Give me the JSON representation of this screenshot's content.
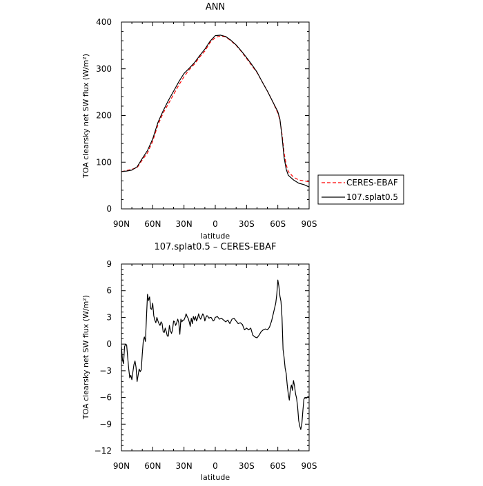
{
  "chart_data": [
    {
      "type": "line",
      "title": "ANN",
      "xlabel": "latitude",
      "ylabel": "TOA clearsky net SW flux (W/m²)",
      "xlim": [
        90,
        -90
      ],
      "ylim": [
        0,
        400
      ],
      "x_ticks": [
        90,
        60,
        30,
        0,
        -30,
        -60,
        -90
      ],
      "x_tick_labels": [
        "90N",
        "60N",
        "30N",
        "0",
        "30S",
        "60S",
        "90S"
      ],
      "y_ticks": [
        0,
        100,
        200,
        300,
        400
      ],
      "y_tick_labels": [
        "0",
        "100",
        "200",
        "300",
        "400"
      ],
      "legend": {
        "placement": "right-outside-bottom"
      },
      "series": [
        {
          "name": "CERES-EBAF",
          "color": "#ff0000",
          "dash": "dashed",
          "points": [
            [
              90,
              80
            ],
            [
              85,
              82
            ],
            [
              80,
              85
            ],
            [
              75,
              88
            ],
            [
              70,
              105
            ],
            [
              65,
              120
            ],
            [
              60,
              145
            ],
            [
              55,
              180
            ],
            [
              50,
              205
            ],
            [
              45,
              225
            ],
            [
              40,
              245
            ],
            [
              35,
              265
            ],
            [
              30,
              283
            ],
            [
              25,
              298
            ],
            [
              20,
              310
            ],
            [
              15,
              325
            ],
            [
              10,
              338
            ],
            [
              5,
              356
            ],
            [
              0,
              367
            ],
            [
              -5,
              370
            ],
            [
              -10,
              368
            ],
            [
              -15,
              360
            ],
            [
              -20,
              350
            ],
            [
              -25,
              337
            ],
            [
              -30,
              322
            ],
            [
              -35,
              307
            ],
            [
              -40,
              292
            ],
            [
              -45,
              272
            ],
            [
              -50,
              252
            ],
            [
              -55,
              230
            ],
            [
              -60,
              205
            ],
            [
              -62,
              190
            ],
            [
              -64,
              160
            ],
            [
              -66,
              120
            ],
            [
              -68,
              95
            ],
            [
              -70,
              80
            ],
            [
              -75,
              68
            ],
            [
              -80,
              62
            ],
            [
              -85,
              60
            ],
            [
              -90,
              58
            ]
          ]
        },
        {
          "name": "107.splat0.5",
          "color": "#000000",
          "dash": "solid",
          "points": [
            [
              90,
              80
            ],
            [
              85,
              81
            ],
            [
              80,
              83
            ],
            [
              75,
              90
            ],
            [
              70,
              108
            ],
            [
              65,
              125
            ],
            [
              60,
              150
            ],
            [
              55,
              185
            ],
            [
              50,
              210
            ],
            [
              45,
              232
            ],
            [
              40,
              252
            ],
            [
              35,
              272
            ],
            [
              30,
              290
            ],
            [
              25,
              301
            ],
            [
              20,
              313
            ],
            [
              15,
              328
            ],
            [
              10,
              342
            ],
            [
              5,
              359
            ],
            [
              0,
              371
            ],
            [
              -5,
              372
            ],
            [
              -10,
              369
            ],
            [
              -15,
              361
            ],
            [
              -20,
              351
            ],
            [
              -25,
              338
            ],
            [
              -30,
              324
            ],
            [
              -35,
              309
            ],
            [
              -40,
              293
            ],
            [
              -45,
              272
            ],
            [
              -50,
              252
            ],
            [
              -55,
              230
            ],
            [
              -60,
              208
            ],
            [
              -62,
              192
            ],
            [
              -64,
              155
            ],
            [
              -66,
              110
            ],
            [
              -68,
              85
            ],
            [
              -70,
              72
            ],
            [
              -75,
              62
            ],
            [
              -80,
              55
            ],
            [
              -85,
              52
            ],
            [
              -90,
              47
            ]
          ]
        }
      ]
    },
    {
      "type": "line",
      "title": "107.splat0.5 – CERES-EBAF",
      "xlabel": "latitude",
      "ylabel": "TOA clearsky net SW flux (W/m²)",
      "xlim": [
        90,
        -90
      ],
      "ylim": [
        -12,
        9
      ],
      "x_ticks": [
        90,
        60,
        30,
        0,
        -30,
        -60,
        -90
      ],
      "x_tick_labels": [
        "90N",
        "60N",
        "30N",
        "0",
        "30S",
        "60S",
        "90S"
      ],
      "y_ticks": [
        -12,
        -9,
        -6,
        -3,
        0,
        3,
        6,
        9
      ],
      "y_tick_labels": [
        "−12",
        "−9",
        "−6",
        "−3",
        "0",
        "3",
        "6",
        "9"
      ],
      "series": [
        {
          "color": "#000000",
          "points": [
            [
              90,
              -0.3
            ],
            [
              89,
              -1.8
            ],
            [
              88,
              -2.2
            ],
            [
              87,
              -0.3
            ],
            [
              86,
              0
            ],
            [
              85,
              -0.1
            ],
            [
              84,
              -1.5
            ],
            [
              83,
              -2.8
            ],
            [
              82,
              -3.8
            ],
            [
              81,
              -3.5
            ],
            [
              80,
              -4
            ],
            [
              79,
              -3.1
            ],
            [
              78,
              -2.3
            ],
            [
              77,
              -1.9
            ],
            [
              76,
              -2.6
            ],
            [
              75,
              -4.2
            ],
            [
              74,
              -3.5
            ],
            [
              73,
              -2.8
            ],
            [
              72,
              -3.1
            ],
            [
              71,
              -2.9
            ],
            [
              70,
              -1.1
            ],
            [
              69,
              0.4
            ],
            [
              68,
              0.8
            ],
            [
              67,
              0.3
            ],
            [
              66,
              3
            ],
            [
              65,
              5.6
            ],
            [
              64,
              4.9
            ],
            [
              63,
              5.3
            ],
            [
              62,
              4
            ],
            [
              61,
              3.9
            ],
            [
              60,
              4.6
            ],
            [
              59,
              3.2
            ],
            [
              58,
              2.7
            ],
            [
              57,
              2.4
            ],
            [
              56,
              3
            ],
            [
              55,
              2.6
            ],
            [
              54,
              2.3
            ],
            [
              53,
              2.1
            ],
            [
              52,
              2.5
            ],
            [
              51,
              2.3
            ],
            [
              50,
              1.4
            ],
            [
              49,
              1.3
            ],
            [
              48,
              1.8
            ],
            [
              47,
              1.4
            ],
            [
              46,
              0.9
            ],
            [
              45,
              0.9
            ],
            [
              44,
              2.1
            ],
            [
              43,
              1.5
            ],
            [
              42,
              1.2
            ],
            [
              41,
              1.6
            ],
            [
              40,
              2.6
            ],
            [
              39,
              2.5
            ],
            [
              38,
              2.1
            ],
            [
              37,
              2.4
            ],
            [
              36,
              2.8
            ],
            [
              35,
              2.4
            ],
            [
              34,
              1.1
            ],
            [
              33,
              2.8
            ],
            [
              32,
              2.5
            ],
            [
              31,
              2.7
            ],
            [
              30,
              2.7
            ],
            [
              29,
              3
            ],
            [
              28,
              3.4
            ],
            [
              27,
              3.1
            ],
            [
              26,
              2.9
            ],
            [
              25,
              2.5
            ],
            [
              24,
              2
            ],
            [
              23,
              2.9
            ],
            [
              22,
              2.3
            ],
            [
              21,
              3.1
            ],
            [
              20,
              2.7
            ],
            [
              19,
              3.1
            ],
            [
              18,
              2.6
            ],
            [
              17,
              2.9
            ],
            [
              16,
              3.4
            ],
            [
              15,
              3
            ],
            [
              14,
              2.8
            ],
            [
              13,
              3.1
            ],
            [
              12,
              3.4
            ],
            [
              11,
              3.2
            ],
            [
              10,
              2.6
            ],
            [
              9,
              3
            ],
            [
              8,
              3.2
            ],
            [
              7,
              3.1
            ],
            [
              6,
              2.9
            ],
            [
              5,
              3
            ],
            [
              4,
              3
            ],
            [
              3,
              2.8
            ],
            [
              2,
              2.6
            ],
            [
              1,
              2.7
            ],
            [
              0,
              3
            ],
            [
              -2,
              3.1
            ],
            [
              -4,
              2.8
            ],
            [
              -6,
              2.9
            ],
            [
              -8,
              2.7
            ],
            [
              -10,
              2.5
            ],
            [
              -12,
              2.7
            ],
            [
              -14,
              2.3
            ],
            [
              -16,
              2.8
            ],
            [
              -18,
              2.9
            ],
            [
              -20,
              2.6
            ],
            [
              -22,
              2.3
            ],
            [
              -24,
              2.4
            ],
            [
              -26,
              2.2
            ],
            [
              -28,
              1.6
            ],
            [
              -30,
              1.8
            ],
            [
              -32,
              1.6
            ],
            [
              -34,
              1.8
            ],
            [
              -36,
              1
            ],
            [
              -38,
              0.8
            ],
            [
              -40,
              0.7
            ],
            [
              -42,
              1
            ],
            [
              -44,
              1.4
            ],
            [
              -46,
              1.6
            ],
            [
              -48,
              1.7
            ],
            [
              -50,
              1.6
            ],
            [
              -52,
              1.9
            ],
            [
              -54,
              2.6
            ],
            [
              -56,
              3.6
            ],
            [
              -58,
              4.6
            ],
            [
              -59,
              5.6
            ],
            [
              -60,
              7.2
            ],
            [
              -61,
              6.5
            ],
            [
              -62,
              5.4
            ],
            [
              -63,
              4.8
            ],
            [
              -64,
              3
            ],
            [
              -65,
              -0.6
            ],
            [
              -66,
              -1.5
            ],
            [
              -67,
              -2.7
            ],
            [
              -68,
              -3.3
            ],
            [
              -69,
              -4.6
            ],
            [
              -70,
              -5.6
            ],
            [
              -71,
              -6.3
            ],
            [
              -72,
              -5.1
            ],
            [
              -73,
              -4.6
            ],
            [
              -74,
              -5.2
            ],
            [
              -75,
              -4.1
            ],
            [
              -76,
              -4.7
            ],
            [
              -77,
              -5.6
            ],
            [
              -78,
              -6.1
            ],
            [
              -79,
              -7.1
            ],
            [
              -80,
              -8.6
            ],
            [
              -81,
              -9.2
            ],
            [
              -82,
              -9.6
            ],
            [
              -83,
              -9
            ],
            [
              -84,
              -7.5
            ],
            [
              -85,
              -6.2
            ],
            [
              -86,
              -6
            ],
            [
              -87,
              -6.1
            ],
            [
              -88,
              -6
            ],
            [
              -89,
              -5.9
            ],
            [
              -90,
              -6
            ]
          ]
        }
      ]
    }
  ]
}
